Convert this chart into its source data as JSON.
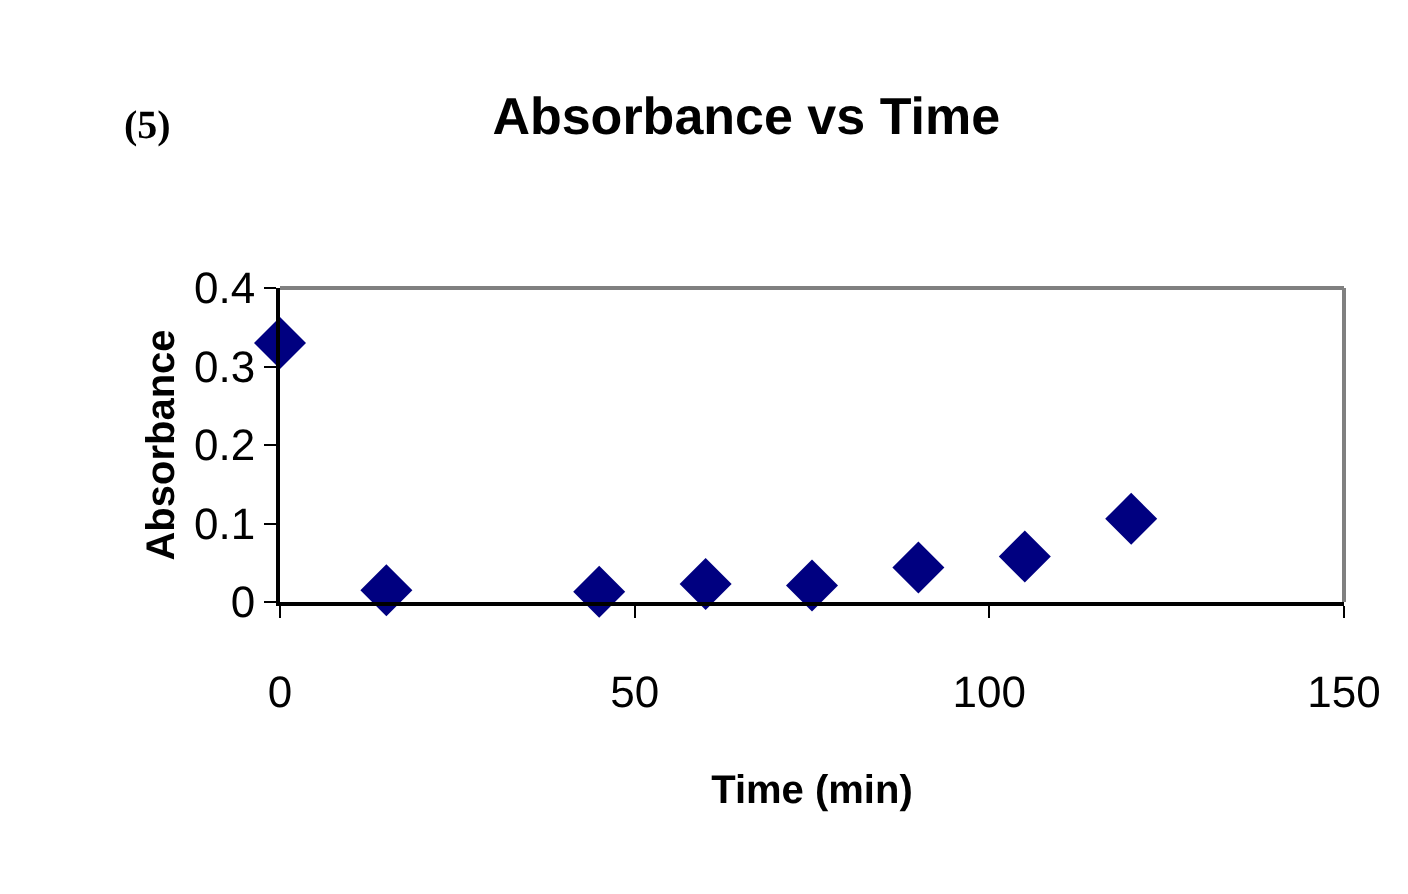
{
  "chart_data": {
    "type": "scatter",
    "title": "Absorbance vs Time",
    "xlabel": "Time (min)",
    "ylabel": "Absorbance",
    "annotations": [
      "(5)"
    ],
    "x": [
      0,
      15,
      45,
      60,
      75,
      90,
      105,
      120
    ],
    "series": [
      {
        "color": "#000080",
        "values": [
          0.33,
          0.015,
          0.013,
          0.023,
          0.021,
          0.044,
          0.058,
          0.106
        ]
      }
    ],
    "xlim": [
      0,
      150
    ],
    "xticks": [
      0,
      50,
      100,
      150
    ],
    "ylim": [
      0,
      0.4
    ],
    "yticks": [
      0,
      0.1,
      0.2,
      0.3,
      0.4
    ],
    "marker": "diamond",
    "legend": false
  }
}
